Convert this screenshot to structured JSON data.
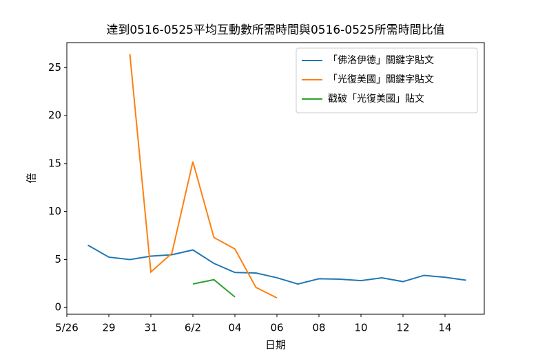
{
  "chart_data": {
    "type": "line",
    "title": "達到0516-0525平均互動數所需時間與0516-0525所需時間比值",
    "xlabel": "日期",
    "ylabel": "倍",
    "categories": [
      "5/26",
      null,
      "29",
      null,
      "31",
      null,
      "6/2",
      null,
      "04",
      null,
      "06",
      null,
      "08",
      null,
      "10",
      null,
      "12",
      null,
      "14",
      null
    ],
    "series": [
      {
        "name": "「佛洛伊德」關鍵字貼文",
        "color": "#1f77b4",
        "values": [
          null,
          6.5,
          5.25,
          5.0,
          5.35,
          5.5,
          6.0,
          4.6,
          3.65,
          3.6,
          3.1,
          2.45,
          3.0,
          2.95,
          2.8,
          3.1,
          2.7,
          3.35,
          3.15,
          2.85
        ]
      },
      {
        "name": "「光復美國」關鍵字貼文",
        "color": "#ff7f0e",
        "values": [
          null,
          null,
          null,
          26.4,
          3.7,
          5.65,
          15.2,
          7.3,
          6.1,
          2.1,
          1.0,
          null,
          null,
          null,
          null,
          null,
          null,
          null,
          null,
          null
        ]
      },
      {
        "name": "戳破「光復美國」貼文",
        "color": "#2ca02c",
        "values": [
          null,
          null,
          null,
          null,
          null,
          null,
          2.45,
          2.9,
          1.1,
          null,
          null,
          null,
          null,
          null,
          null,
          null,
          null,
          null,
          null,
          null
        ]
      }
    ],
    "ylim": [
      -0.7,
      27.6
    ],
    "yticks": [
      0,
      5,
      10,
      15,
      20,
      25
    ],
    "legend": "upper right"
  }
}
